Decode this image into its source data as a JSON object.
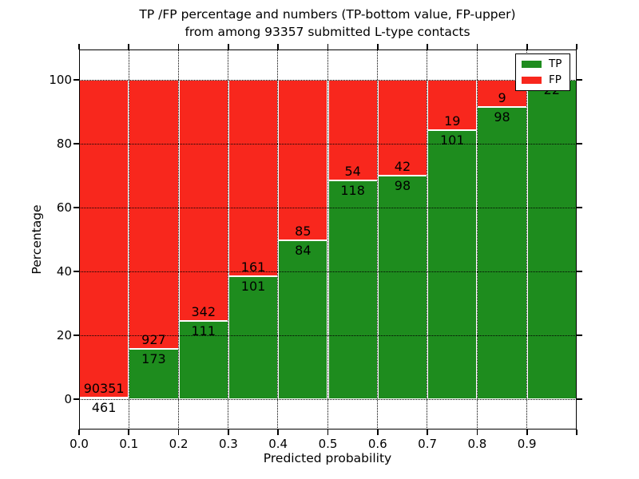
{
  "figure": {
    "title_line1": "TP /FP percentage and numbers (TP-bottom value, FP-upper)",
    "title_line2": "from among 93357 submitted L-type contacts"
  },
  "chart_data": {
    "type": "bar",
    "subtype": "stacked-percentage",
    "title": "TP /FP percentage and numbers (TP-bottom value, FP-upper) from among 93357 submitted L-type contacts",
    "xlabel": "Predicted probability",
    "ylabel": "Percentage",
    "x_tick_labels": [
      "0.0",
      "0.1",
      "0.2",
      "0.3",
      "0.4",
      "0.5",
      "0.6",
      "0.7",
      "0.8",
      "0.9"
    ],
    "y_ticks": [
      0,
      20,
      40,
      60,
      80,
      100
    ],
    "xlim": [
      0.0,
      1.0
    ],
    "ylim": [
      -9.5,
      109.5
    ],
    "grid": "dotted-black",
    "total_contacts": 93357,
    "legend": {
      "position": "upper-right",
      "entries": [
        {
          "label": "TP",
          "color": "#1e8c1e"
        },
        {
          "label": "FP",
          "color": "#f8271d"
        }
      ]
    },
    "bins": [
      {
        "range": "0.0-0.1",
        "tp": 461,
        "fp": 90351,
        "tp_label": "461",
        "fp_label": "90351"
      },
      {
        "range": "0.1-0.2",
        "tp": 173,
        "fp": 927,
        "tp_label": "173",
        "fp_label": "927"
      },
      {
        "range": "0.2-0.3",
        "tp": 111,
        "fp": 342,
        "tp_label": "111",
        "fp_label": "342"
      },
      {
        "range": "0.3-0.4",
        "tp": 101,
        "fp": 161,
        "tp_label": "101",
        "fp_label": "161"
      },
      {
        "range": "0.4-0.5",
        "tp": 84,
        "fp": 85,
        "tp_label": "84",
        "fp_label": "85"
      },
      {
        "range": "0.5-0.6",
        "tp": 118,
        "fp": 54,
        "tp_label": "118",
        "fp_label": "54"
      },
      {
        "range": "0.6-0.7",
        "tp": 98,
        "fp": 42,
        "tp_label": "98",
        "fp_label": "42"
      },
      {
        "range": "0.7-0.8",
        "tp": 101,
        "fp": 19,
        "tp_label": "101",
        "fp_label": "19"
      },
      {
        "range": "0.8-0.9",
        "tp": 98,
        "fp": 9,
        "tp_label": "98",
        "fp_label": "9"
      },
      {
        "range": "0.9-1.0",
        "tp": 22,
        "fp": 0,
        "tp_label": "22",
        "fp_label": ""
      }
    ]
  },
  "colors": {
    "tp_green": "#1e8c1e",
    "fp_red": "#f8271d",
    "bar_edge": "#ffffff",
    "grid": "#000000",
    "background": "#ffffff"
  }
}
